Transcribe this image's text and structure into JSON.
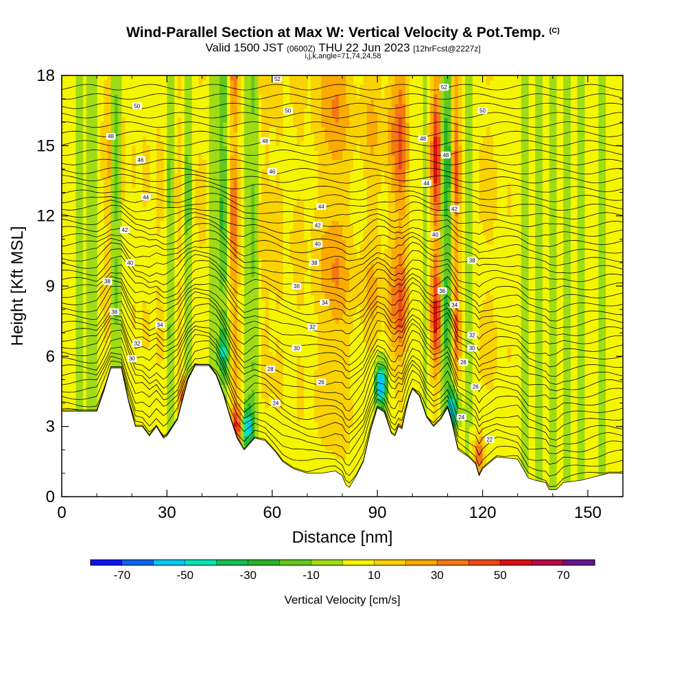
{
  "chart_data": {
    "type": "heatmap",
    "title": "Wind-Parallel Section at Max W: Vertical Velocity & Pot.Temp.",
    "title_mark": "(C)",
    "subtitle_main_a": "Valid 1500 JST",
    "subtitle_small_a": "(0600Z)",
    "subtitle_main_b": "THU 22 Jun 2023",
    "subtitle_small_b": "[12hrFcst@2227z]",
    "subtitle2": "i,j,k,angle=71,74,24,58",
    "xlabel": "Distance [nm]",
    "ylabel": "Height [Kft MSL]",
    "xlim": [
      0,
      160
    ],
    "ylim": [
      0,
      18
    ],
    "xticks": [
      "0",
      "30",
      "60",
      "90",
      "120",
      "150"
    ],
    "xtick_values": [
      0,
      30,
      60,
      90,
      120,
      150
    ],
    "yticks": [
      "0",
      "3",
      "6",
      "9",
      "12",
      "15",
      "18"
    ],
    "ytick_values": [
      0,
      3,
      6,
      9,
      12,
      15,
      18
    ],
    "colorbar": {
      "label": "Vertical Velocity [cm/s]",
      "tick_labels": [
        "-70",
        "-50",
        "-30",
        "-10",
        "10",
        "30",
        "50",
        "70"
      ],
      "tick_values": [
        -70,
        -50,
        -30,
        -10,
        10,
        30,
        50,
        70
      ],
      "boundaries": [
        -80,
        -70,
        -60,
        -50,
        -40,
        -30,
        -20,
        -10,
        0,
        10,
        20,
        30,
        40,
        50,
        60,
        70,
        80
      ],
      "colors": [
        "#0a14f0",
        "#0a64f0",
        "#00c8f5",
        "#00e6b4",
        "#14be50",
        "#28b428",
        "#64c81e",
        "#a0dc14",
        "#f5f500",
        "#fad200",
        "#faaa00",
        "#f57814",
        "#f04614",
        "#dc0f0f",
        "#b40a46",
        "#64148c"
      ]
    },
    "columns": [
      {
        "x": 0,
        "w": 1
      },
      {
        "x": 2,
        "w": 5
      },
      {
        "x": 3,
        "w": 2
      },
      {
        "x": 5,
        "w": -4
      },
      {
        "x": 7,
        "w": 6
      },
      {
        "x": 8,
        "w": -10
      },
      {
        "x": 9,
        "w": 5
      },
      {
        "x": 10,
        "w": -18
      },
      {
        "x": 11,
        "w": 20
      },
      {
        "x": 12,
        "w": 3
      },
      {
        "x": 13,
        "w": 36
      },
      {
        "x": 14,
        "w": 8
      },
      {
        "x": 15,
        "w": -14
      },
      {
        "x": 16,
        "w": -22
      },
      {
        "x": 17,
        "w": 5
      },
      {
        "x": 18,
        "w": 22
      },
      {
        "x": 19,
        "w": -8
      },
      {
        "x": 20,
        "w": 12
      },
      {
        "x": 22,
        "w": 8
      },
      {
        "x": 24,
        "w": 14
      },
      {
        "x": 26,
        "w": 4
      },
      {
        "x": 28,
        "w": 20
      },
      {
        "x": 30,
        "w": -6
      },
      {
        "x": 31,
        "w": -16
      },
      {
        "x": 32,
        "w": 6
      },
      {
        "x": 34,
        "w": 24
      },
      {
        "x": 35,
        "w": -6
      },
      {
        "x": 36,
        "w": -20
      },
      {
        "x": 37,
        "w": -4
      },
      {
        "x": 38,
        "w": 10
      },
      {
        "x": 40,
        "w": 16
      },
      {
        "x": 42,
        "w": 6
      },
      {
        "x": 43,
        "w": -14
      },
      {
        "x": 44,
        "w": 8
      },
      {
        "x": 45,
        "w": -12
      },
      {
        "x": 46,
        "w": -30
      },
      {
        "x": 47,
        "w": -8
      },
      {
        "x": 48,
        "w": 14
      },
      {
        "x": 49,
        "w": 55
      },
      {
        "x": 50,
        "w": 24
      },
      {
        "x": 51,
        "w": 12
      },
      {
        "x": 53,
        "w": -4
      },
      {
        "x": 55,
        "w": -18
      },
      {
        "x": 56,
        "w": 8
      },
      {
        "x": 58,
        "w": 22
      },
      {
        "x": 60,
        "w": 14
      },
      {
        "x": 62,
        "w": 20
      },
      {
        "x": 64,
        "w": 6
      },
      {
        "x": 66,
        "w": 12
      },
      {
        "x": 68,
        "w": 18
      },
      {
        "x": 70,
        "w": 8
      },
      {
        "x": 72,
        "w": 14
      },
      {
        "x": 74,
        "w": 22
      },
      {
        "x": 76,
        "w": 26
      },
      {
        "x": 78,
        "w": 32
      },
      {
        "x": 80,
        "w": 28
      },
      {
        "x": 82,
        "w": 18
      },
      {
        "x": 84,
        "w": 10
      },
      {
        "x": 86,
        "w": 14
      },
      {
        "x": 88,
        "w": 24
      },
      {
        "x": 90,
        "w": 20
      },
      {
        "x": 92,
        "w": 10
      },
      {
        "x": 94,
        "w": 28
      },
      {
        "x": 96,
        "w": 42
      },
      {
        "x": 97,
        "w": 48
      },
      {
        "x": 98,
        "w": 30
      },
      {
        "x": 99,
        "w": 14
      },
      {
        "x": 100,
        "w": 4
      },
      {
        "x": 102,
        "w": 12
      },
      {
        "x": 103,
        "w": -8
      },
      {
        "x": 104,
        "w": 6
      },
      {
        "x": 105,
        "w": 18
      },
      {
        "x": 106,
        "w": 46
      },
      {
        "x": 107,
        "w": 66
      },
      {
        "x": 108,
        "w": 22
      },
      {
        "x": 109,
        "w": -24
      },
      {
        "x": 110,
        "w": -36
      },
      {
        "x": 111,
        "w": -8
      },
      {
        "x": 112,
        "w": 50
      },
      {
        "x": 113,
        "w": 36
      },
      {
        "x": 114,
        "w": 10
      },
      {
        "x": 116,
        "w": -6
      },
      {
        "x": 118,
        "w": 8
      },
      {
        "x": 120,
        "w": 14
      },
      {
        "x": 122,
        "w": 18
      },
      {
        "x": 124,
        "w": 10
      },
      {
        "x": 126,
        "w": 6
      },
      {
        "x": 128,
        "w": 12
      },
      {
        "x": 130,
        "w": 4
      },
      {
        "x": 132,
        "w": -4
      },
      {
        "x": 134,
        "w": 10
      },
      {
        "x": 136,
        "w": -8
      },
      {
        "x": 138,
        "w": 6
      },
      {
        "x": 140,
        "w": -10
      },
      {
        "x": 142,
        "w": 4
      },
      {
        "x": 144,
        "w": -6
      },
      {
        "x": 146,
        "w": 8
      },
      {
        "x": 148,
        "w": -4
      },
      {
        "x": 150,
        "w": 6
      },
      {
        "x": 152,
        "w": 10
      },
      {
        "x": 154,
        "w": -6
      },
      {
        "x": 156,
        "w": 4
      },
      {
        "x": 158,
        "w": 8
      },
      {
        "x": 160,
        "w": 6
      }
    ],
    "blobs": [
      {
        "x": 91,
        "y": 4.8,
        "w": -70
      },
      {
        "x": 111.5,
        "y": 3.8,
        "w": -60
      },
      {
        "x": 53,
        "y": 3.0,
        "w": -55
      },
      {
        "x": 35,
        "y": 4.0,
        "w": 55
      },
      {
        "x": 50,
        "y": 3.0,
        "w": 45
      },
      {
        "x": 119,
        "y": 1.8,
        "w": 35
      },
      {
        "x": 46,
        "y": 6.2,
        "w": -35
      }
    ],
    "terrain": [
      [
        0,
        3.65
      ],
      [
        8,
        3.65
      ],
      [
        10,
        3.65
      ],
      [
        12,
        4.5
      ],
      [
        14,
        5.5
      ],
      [
        17,
        5.5
      ],
      [
        19,
        4.1
      ],
      [
        21,
        3.0
      ],
      [
        23,
        3.0
      ],
      [
        25,
        2.6
      ],
      [
        27,
        3.0
      ],
      [
        29,
        2.5
      ],
      [
        30,
        2.6
      ],
      [
        33,
        3.3
      ],
      [
        36,
        5.0
      ],
      [
        38,
        5.6
      ],
      [
        42,
        5.6
      ],
      [
        44,
        5.2
      ],
      [
        46,
        4.4
      ],
      [
        48,
        3.4
      ],
      [
        50,
        2.5
      ],
      [
        52,
        2.0
      ],
      [
        55,
        2.5
      ],
      [
        58,
        2.4
      ],
      [
        61,
        1.9
      ],
      [
        63,
        1.5
      ],
      [
        66,
        1.2
      ],
      [
        70,
        1.0
      ],
      [
        74,
        1.0
      ],
      [
        78,
        1.1
      ],
      [
        80,
        0.9
      ],
      [
        81,
        0.5
      ],
      [
        82,
        0.4
      ],
      [
        84,
        0.9
      ],
      [
        86,
        1.5
      ],
      [
        88,
        2.8
      ],
      [
        90,
        3.8
      ],
      [
        92,
        3.6
      ],
      [
        94,
        2.7
      ],
      [
        95,
        2.6
      ],
      [
        96,
        3.0
      ],
      [
        97,
        2.9
      ],
      [
        98,
        3.6
      ],
      [
        99,
        4.2
      ],
      [
        100,
        4.6
      ],
      [
        102,
        4.3
      ],
      [
        104,
        3.4
      ],
      [
        106,
        3.0
      ],
      [
        108,
        3.3
      ],
      [
        110,
        3.8
      ],
      [
        111,
        3.3
      ],
      [
        113,
        2.0
      ],
      [
        116,
        1.7
      ],
      [
        118,
        1.4
      ],
      [
        119,
        0.9
      ],
      [
        120,
        1.2
      ],
      [
        124,
        1.7
      ],
      [
        130,
        1.6
      ],
      [
        133,
        0.8
      ],
      [
        135,
        0.7
      ],
      [
        138,
        0.6
      ],
      [
        139,
        0.3
      ],
      [
        141,
        0.3
      ],
      [
        143,
        0.6
      ],
      [
        148,
        0.7
      ],
      [
        156,
        1.0
      ],
      [
        160,
        1.0
      ]
    ],
    "contour_labels": [
      {
        "text": "52",
        "x": 61.5,
        "y": 17.85
      },
      {
        "text": "52",
        "x": 109,
        "y": 17.5
      },
      {
        "text": "50",
        "x": 21.5,
        "y": 16.7
      },
      {
        "text": "50",
        "x": 64.5,
        "y": 16.5
      },
      {
        "text": "50",
        "x": 120,
        "y": 16.5
      },
      {
        "text": "48",
        "x": 14,
        "y": 15.4
      },
      {
        "text": "48",
        "x": 58,
        "y": 15.2
      },
      {
        "text": "48",
        "x": 103,
        "y": 15.3
      },
      {
        "text": "48",
        "x": 109.5,
        "y": 14.6
      },
      {
        "text": "46",
        "x": 22.5,
        "y": 14.4
      },
      {
        "text": "46",
        "x": 60,
        "y": 13.9
      },
      {
        "text": "44",
        "x": 24,
        "y": 12.8
      },
      {
        "text": "44",
        "x": 74,
        "y": 12.4
      },
      {
        "text": "44",
        "x": 104,
        "y": 13.4
      },
      {
        "text": "42",
        "x": 18,
        "y": 11.4
      },
      {
        "text": "42",
        "x": 73,
        "y": 11.6
      },
      {
        "text": "42",
        "x": 112,
        "y": 12.3
      },
      {
        "text": "40",
        "x": 19.5,
        "y": 10.0
      },
      {
        "text": "40",
        "x": 73,
        "y": 10.8
      },
      {
        "text": "40",
        "x": 106.5,
        "y": 11.2
      },
      {
        "text": "38",
        "x": 13,
        "y": 9.2
      },
      {
        "text": "38",
        "x": 72,
        "y": 10.0
      },
      {
        "text": "38",
        "x": 117,
        "y": 10.1
      },
      {
        "text": "38",
        "x": 15,
        "y": 7.9
      },
      {
        "text": "36",
        "x": 67,
        "y": 9.0
      },
      {
        "text": "36",
        "x": 108.5,
        "y": 8.8
      },
      {
        "text": "34",
        "x": 28,
        "y": 7.35
      },
      {
        "text": "34",
        "x": 75,
        "y": 8.3
      },
      {
        "text": "34",
        "x": 112,
        "y": 8.2
      },
      {
        "text": "32",
        "x": 21.5,
        "y": 6.55
      },
      {
        "text": "32",
        "x": 71.5,
        "y": 7.25
      },
      {
        "text": "32",
        "x": 117,
        "y": 6.9
      },
      {
        "text": "30",
        "x": 20,
        "y": 5.9
      },
      {
        "text": "30",
        "x": 67,
        "y": 6.35
      },
      {
        "text": "30",
        "x": 117,
        "y": 6.35
      },
      {
        "text": "28",
        "x": 59.5,
        "y": 5.45
      },
      {
        "text": "28",
        "x": 114.5,
        "y": 5.75
      },
      {
        "text": "26",
        "x": 74,
        "y": 4.9
      },
      {
        "text": "26",
        "x": 118,
        "y": 4.7
      },
      {
        "text": "24",
        "x": 61,
        "y": 4.0
      },
      {
        "text": "24",
        "x": 114,
        "y": 3.4
      },
      {
        "text": "22",
        "x": 122,
        "y": 2.45
      }
    ]
  }
}
